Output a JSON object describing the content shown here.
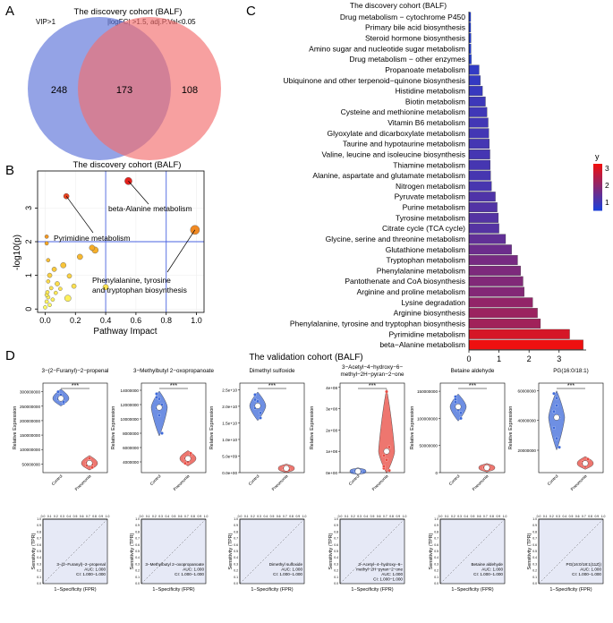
{
  "panel_letters": {
    "a": "A",
    "b": "B",
    "c": "C",
    "d": "D"
  },
  "colors": {
    "venn_left": "#5b72d8",
    "venn_right": "#f26d6d",
    "bubble_dark": "#e31a1c",
    "bubble_light": "#ffff66",
    "bar_low": "#1f3fd6",
    "bar_high": "#ee1010",
    "violin_control": "#3d69d9",
    "violin_pneumonia": "#e8483f",
    "roc_fill": "#e6e9f6"
  },
  "chart_data": [
    {
      "id": "venn",
      "type": "venn",
      "title": "The discovery cohort (BALF)",
      "set_labels": [
        "VIP>1",
        "|logFC| >1.5, adj.P.Val<0.05"
      ],
      "left_only": "248",
      "intersection": "173",
      "right_only": "108"
    },
    {
      "id": "pathway",
      "type": "scatter",
      "title": "The discovery cohort (BALF)",
      "xlabel": "Pathway Impact",
      "ylabel": "-log10(p)",
      "xlim": [
        -0.05,
        1.05
      ],
      "ylim": [
        -0.1,
        4.1
      ],
      "xticks": [
        "0.0",
        "0.2",
        "0.4",
        "0.6",
        "0.8",
        "1.0"
      ],
      "yticks": [
        "0",
        "1",
        "2",
        "3"
      ],
      "hlines": [
        2.0
      ],
      "vlines": [
        0.4,
        0.8
      ],
      "points": [
        {
          "x": 0.55,
          "y": 3.8,
          "size": 7
        },
        {
          "x": 0.14,
          "y": 3.35,
          "size": 5
        },
        {
          "x": 0.99,
          "y": 2.35,
          "size": 9
        },
        {
          "x": 0.33,
          "y": 1.75,
          "size": 6
        },
        {
          "x": 0.31,
          "y": 1.82,
          "size": 5
        },
        {
          "x": 0.23,
          "y": 1.55,
          "size": 5
        },
        {
          "x": 0.12,
          "y": 1.3,
          "size": 5
        },
        {
          "x": 0.06,
          "y": 1.18,
          "size": 4
        },
        {
          "x": 0.03,
          "y": 1.0,
          "size": 4
        },
        {
          "x": 0.16,
          "y": 0.98,
          "size": 4
        },
        {
          "x": 0.01,
          "y": 2.15,
          "size": 3
        },
        {
          "x": 0.01,
          "y": 1.95,
          "size": 3
        },
        {
          "x": 0.02,
          "y": 1.45,
          "size": 3
        },
        {
          "x": 0.08,
          "y": 0.75,
          "size": 4
        },
        {
          "x": 0.19,
          "y": 0.68,
          "size": 4
        },
        {
          "x": 0.02,
          "y": 0.82,
          "size": 3
        },
        {
          "x": 0.1,
          "y": 0.6,
          "size": 3
        },
        {
          "x": 0.07,
          "y": 0.48,
          "size": 3
        },
        {
          "x": 0.04,
          "y": 0.62,
          "size": 3
        },
        {
          "x": 0.015,
          "y": 0.5,
          "size": 3
        },
        {
          "x": 0.02,
          "y": 0.35,
          "size": 3
        },
        {
          "x": 0.15,
          "y": 0.32,
          "size": 6
        },
        {
          "x": 0.4,
          "y": 0.65,
          "size": 5
        },
        {
          "x": 0.01,
          "y": 0.22,
          "size": 3
        },
        {
          "x": 0.03,
          "y": 0.12,
          "size": 3
        },
        {
          "x": 0.0,
          "y": 0.05,
          "size": 3
        },
        {
          "x": 0.05,
          "y": 0.28,
          "size": 3
        },
        {
          "x": 0.01,
          "y": 0.42,
          "size": 3
        }
      ],
      "annotations": [
        {
          "text": "beta-Alanine metabolism",
          "x": 0.55,
          "y": 3.8
        },
        {
          "text": "Pyrimidine metabolism",
          "x": 0.14,
          "y": 3.35
        },
        {
          "text": "Phenylalanine, tyrosine",
          "x": 0.99,
          "y": 2.35
        },
        {
          "text": "and tryptophan biosynthesis",
          "x": 0.99,
          "y": 2.35
        }
      ]
    },
    {
      "id": "enrichment",
      "type": "bar",
      "orientation": "horizontal",
      "title": "The discovery cohort (BALF)",
      "xlim": [
        0,
        3.9
      ],
      "xticks": [
        "0",
        "1",
        "2",
        "3"
      ],
      "legend_title": "y",
      "legend_ticks": [
        "3",
        "2",
        "1"
      ],
      "categories": [
        "Drug metabolism − cytochrome P450",
        "Primary bile acid biosynthesis",
        "Steroid hormone biosynthesis",
        "Amino sugar and nucleotide sugar metabolism",
        "Drug metabolism − other enzymes",
        "Propanoate metabolism",
        "Ubiquinone and other terpenoid−quinone biosynthesis",
        "Histidine metabolism",
        "Biotin metabolism",
        "Cysteine and methionine metabolism",
        "Vitamin B6 metabolism",
        "Glyoxylate and dicarboxylate metabolism",
        "Taurine and hypotaurine metabolism",
        "Valine, leucine and isoleucine biosynthesis",
        "Thiamine metabolism",
        "Alanine, aspartate and glutamate metabolism",
        "Nitrogen metabolism",
        "Pyruvate metabolism",
        "Purine metabolism",
        "Tyrosine metabolism",
        "Citrate cycle (TCA cycle)",
        "Glycine, serine and threonine metabolism",
        "Glutathione metabolism",
        "Tryptophan metabolism",
        "Phenylalanine metabolism",
        "Pantothenate and CoA biosynthesis",
        "Arginine and proline metabolism",
        "Lysine degradation",
        "Arginine biosynthesis",
        "Phenylalanine, tyrosine and tryptophan biosynthesis",
        "Pyrimidine metabolism",
        "beta−Alanine metabolism"
      ],
      "values": [
        0.06,
        0.06,
        0.07,
        0.07,
        0.08,
        0.34,
        0.38,
        0.45,
        0.55,
        0.6,
        0.64,
        0.66,
        0.68,
        0.7,
        0.71,
        0.72,
        0.75,
        0.88,
        0.94,
        0.98,
        1.0,
        1.22,
        1.42,
        1.62,
        1.72,
        1.8,
        1.84,
        2.12,
        2.28,
        2.38,
        3.35,
        3.8
      ]
    },
    {
      "id": "validation",
      "type": "violin",
      "title": "The validation cohort (BALF)",
      "significance": "***",
      "ylabel": "Relative Expression",
      "groups": [
        "Control",
        "Pneumonia"
      ],
      "metabolites": [
        {
          "name": "3−(2−Furanyl)−2−propenal",
          "yticks": [
            "300000000",
            "250000000",
            "200000000",
            "150000000",
            "100000000",
            "50000000"
          ],
          "ymin": 20000000,
          "ymax": 330000000,
          "control": [
            280000000,
            270000000,
            260000000,
            275000000,
            290000000,
            265000000,
            300000000
          ],
          "pneumonia": [
            45000000,
            60000000,
            38000000,
            55000000,
            70000000,
            48000000
          ],
          "roc_label": "3−(2−Furanyl)−2−propenal",
          "auc": "AUC: 1.000",
          "ci": "CI: 1.000−1.000"
        },
        {
          "name": "3−Methylbutyl 2−oxopropanoate",
          "yticks": [
            "14000000",
            "12000000",
            "10000000",
            "8000000",
            "6000000",
            "4000000"
          ],
          "ymin": 2500000,
          "ymax": 15000000,
          "control": [
            13500000,
            12800000,
            12000000,
            11500000,
            10500000,
            8000000,
            13000000
          ],
          "pneumonia": [
            4500000,
            4000000,
            5000000,
            3800000,
            4300000,
            5200000
          ],
          "roc_label": "3−Methylbutyl 2−oxopropanoate",
          "auc": "AUC: 1.000",
          "ci": "CI: 1.000−1.000"
        },
        {
          "name": "Dimethyl sulfoxide",
          "yticks": [
            "2.5e+10",
            "2.0e+10",
            "1.5e+10",
            "1.0e+10",
            "5.0e+09",
            "0.0e+00"
          ],
          "ymin": 0,
          "ymax": 27000000000,
          "control": [
            22000000000,
            20000000000,
            18000000000,
            19500000000,
            21500000000,
            16500000000,
            23500000000
          ],
          "pneumonia": [
            1000000000,
            1500000000,
            800000000,
            1300000000,
            1800000000
          ],
          "roc_label": "Dimethyl sulfoxide",
          "auc": "AUC: 1.000",
          "ci": "CI: 1.000−1.000"
        },
        {
          "name": "3−Acetyl−4−hydroxy−6−",
          "name2": "methyl−2H−pyran−2−one",
          "yticks": [
            "4e+08",
            "3e+08",
            "2e+08",
            "1e+08",
            "0e+00"
          ],
          "ymin": 0,
          "ymax": 420000000,
          "control": [
            5000000,
            8000000,
            3000000,
            10000000,
            6000000,
            4000000
          ],
          "pneumonia": [
            20000000,
            60000000,
            120000000,
            30000000,
            380000000,
            10000000,
            80000000
          ],
          "roc_label": "3−Acetyl−4−hydroxy−6−",
          "roc_label2": "methyl−2H−pyran−2−one",
          "auc": "AUC: 1.000",
          "ci": "CI: 1.000−1.000"
        },
        {
          "name": "Betaine aldehyde",
          "yticks": [
            "150000000",
            "100000000",
            "50000000",
            "0"
          ],
          "ymin": 0,
          "ymax": 165000000,
          "control": [
            130000000,
            120000000,
            110000000,
            140000000,
            115000000,
            100000000,
            135000000
          ],
          "pneumonia": [
            8000000,
            12000000,
            6000000,
            10000000,
            9000000
          ],
          "roc_label": "Betaine aldehyde",
          "auc": "AUC: 1.000",
          "ci": "CI: 1.000−1.000"
        },
        {
          "name": "PG(16:0/18:1)",
          "yticks": [
            "60000000",
            "40000000",
            "20000000"
          ],
          "ymin": 5000000,
          "ymax": 65000000,
          "control": [
            58000000,
            50000000,
            42000000,
            35000000,
            28000000,
            22000000,
            46000000,
            55000000
          ],
          "pneumonia": [
            12000000,
            10000000,
            14000000,
            11000000,
            9000000
          ],
          "roc_label": "PG(16:0/18:1(11Z))",
          "auc": "AUC: 1.000",
          "ci": "CI: 1.000−1.000"
        }
      ],
      "roc": {
        "xlabel": "1−Specificity (FPR)",
        "ylabel": "Sensitivity (TPR)",
        "ticks": [
          "0.0",
          "0.1",
          "0.2",
          "0.3",
          "0.4",
          "0.5",
          "0.6",
          "0.7",
          "0.8",
          "0.9",
          "1.0"
        ]
      }
    }
  ]
}
